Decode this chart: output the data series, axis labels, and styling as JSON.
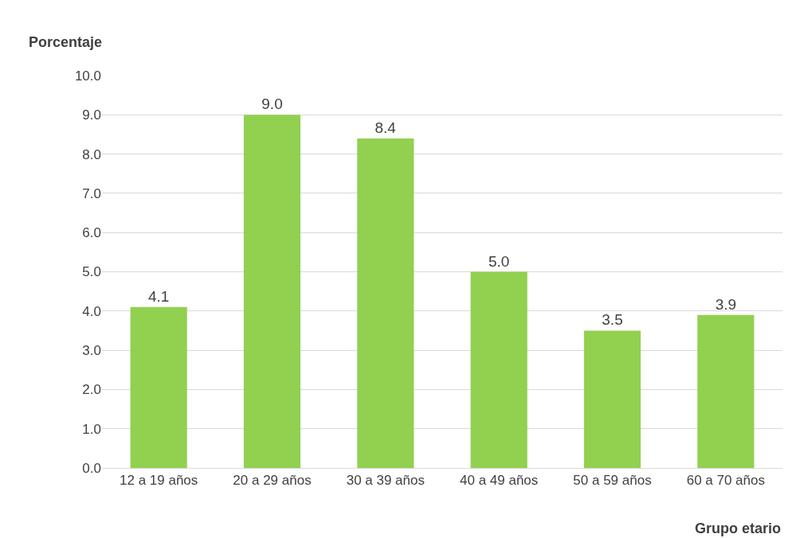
{
  "chart_data": {
    "type": "bar",
    "categories": [
      "12 a 19 años",
      "20 a 29 años",
      "30 a 39 años",
      "40 a 49 años",
      "50 a 59 años",
      "60 a 70 años"
    ],
    "values": [
      4.1,
      9.0,
      8.4,
      5.0,
      3.5,
      3.9
    ],
    "color": "#92d050",
    "ylabel": "Porcentaje",
    "xlabel": "Grupo etario",
    "ylim": [
      0,
      10
    ],
    "yticks": [
      {
        "value": 0,
        "label": "0.0"
      },
      {
        "value": 1,
        "label": "1.0"
      },
      {
        "value": 2,
        "label": "2.0"
      },
      {
        "value": 3,
        "label": "3.0"
      },
      {
        "value": 4,
        "label": "4.0"
      },
      {
        "value": 5,
        "label": "5.0"
      },
      {
        "value": 6,
        "label": "6.0"
      },
      {
        "value": 7,
        "label": "7.0"
      },
      {
        "value": 8,
        "label": "8.0"
      },
      {
        "value": 9,
        "label": "9.0"
      },
      {
        "value": 10,
        "label": "10.0"
      }
    ],
    "grid": "y",
    "legend": false,
    "value_labels": [
      "4.1",
      "9.0",
      "8.4",
      "5.0",
      "3.5",
      "3.9"
    ]
  }
}
